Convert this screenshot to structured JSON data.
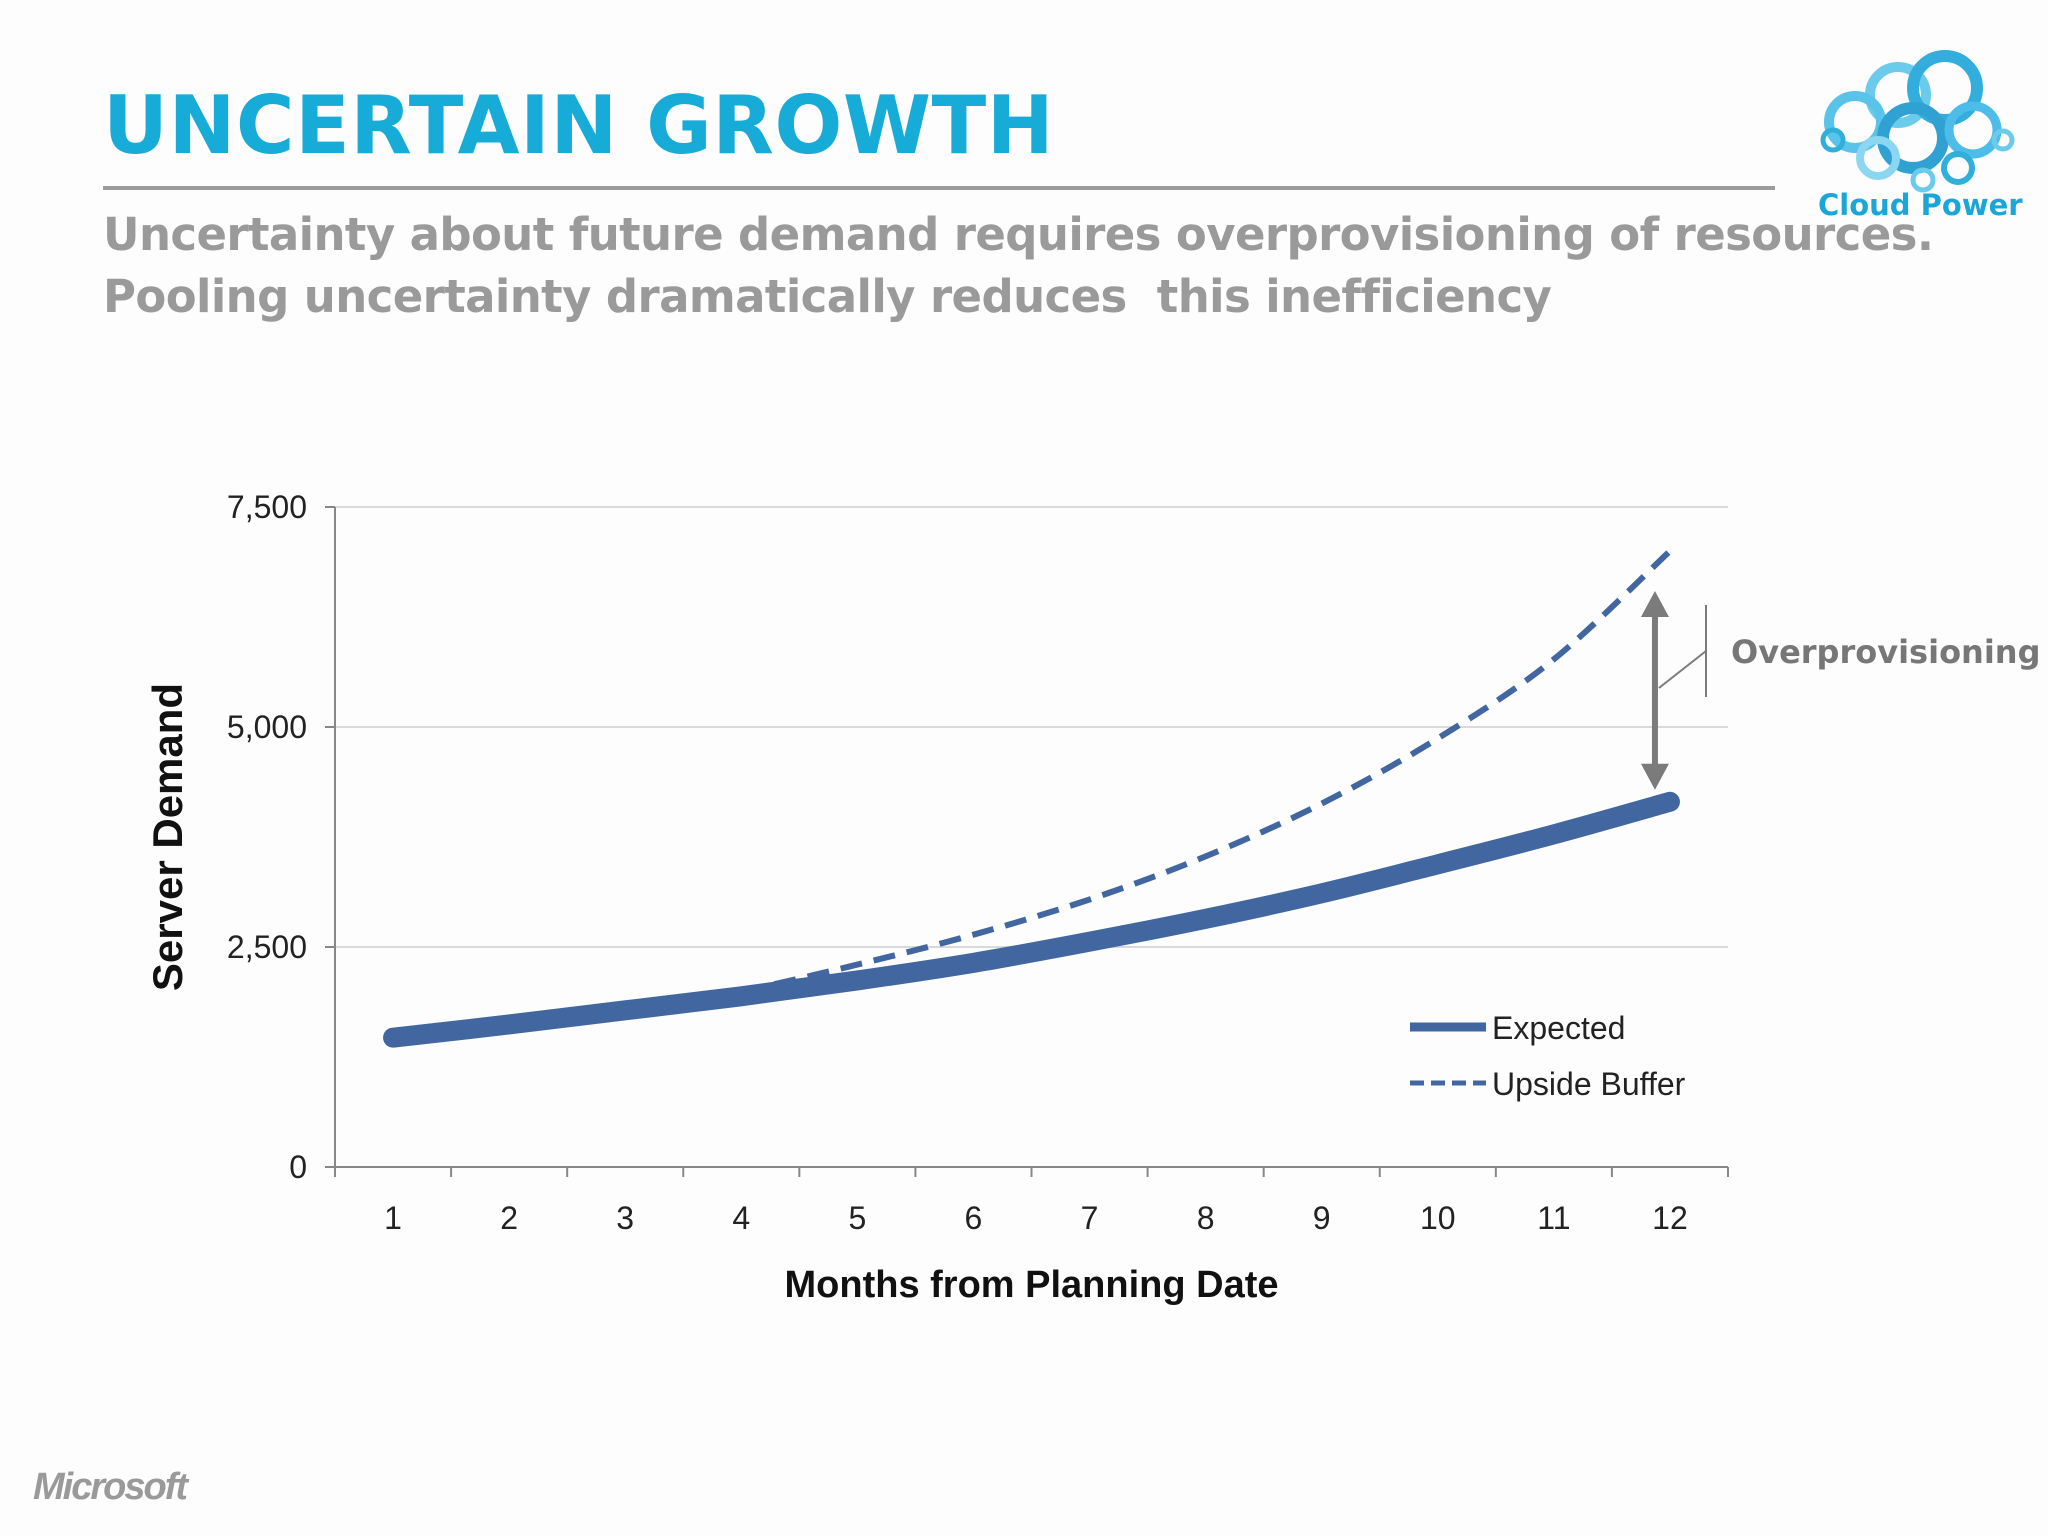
{
  "slide": {
    "title": "UNCERTAIN GROWTH",
    "subtitle_lines": [
      "Uncertainty about future demand requires overprovisioning of resources.",
      "Pooling uncertainty dramatically reduces  this inefficiency"
    ],
    "logo_text": "Cloud Power",
    "footer_brand": "Microsoft",
    "accent_color": "#17abd8"
  },
  "chart_data": {
    "type": "line",
    "x": [
      1,
      2,
      3,
      4,
      5,
      6,
      7,
      8,
      9,
      10,
      11,
      12
    ],
    "categories": [
      "1",
      "2",
      "3",
      "4",
      "5",
      "6",
      "7",
      "8",
      "9",
      "10",
      "11",
      "12"
    ],
    "series": [
      {
        "name": "Expected",
        "style": "solid",
        "color": "#4267a0",
        "values": [
          1470,
          1620,
          1780,
          1940,
          2120,
          2320,
          2560,
          2820,
          3110,
          3440,
          3780,
          4150
        ]
      },
      {
        "name": "Upside Buffer",
        "style": "dashed",
        "color": "#4267a0",
        "values": [
          null,
          null,
          null,
          1990,
          2300,
          2640,
          3040,
          3530,
          4130,
          4870,
          5770,
          7000
        ]
      }
    ],
    "xlabel": "Months from Planning Date",
    "ylabel": "Server Demand",
    "ylim": [
      0,
      7500
    ],
    "yticks": [
      0,
      2500,
      5000,
      7500
    ],
    "ytick_labels": [
      "0",
      "2,500",
      "5,000",
      "7,500"
    ],
    "grid": "horizontal",
    "legend": "bottom-right",
    "annotation": {
      "text": "Overprovisioning",
      "month": 12,
      "from": 4150,
      "to": 7000,
      "color": "#777777"
    }
  }
}
